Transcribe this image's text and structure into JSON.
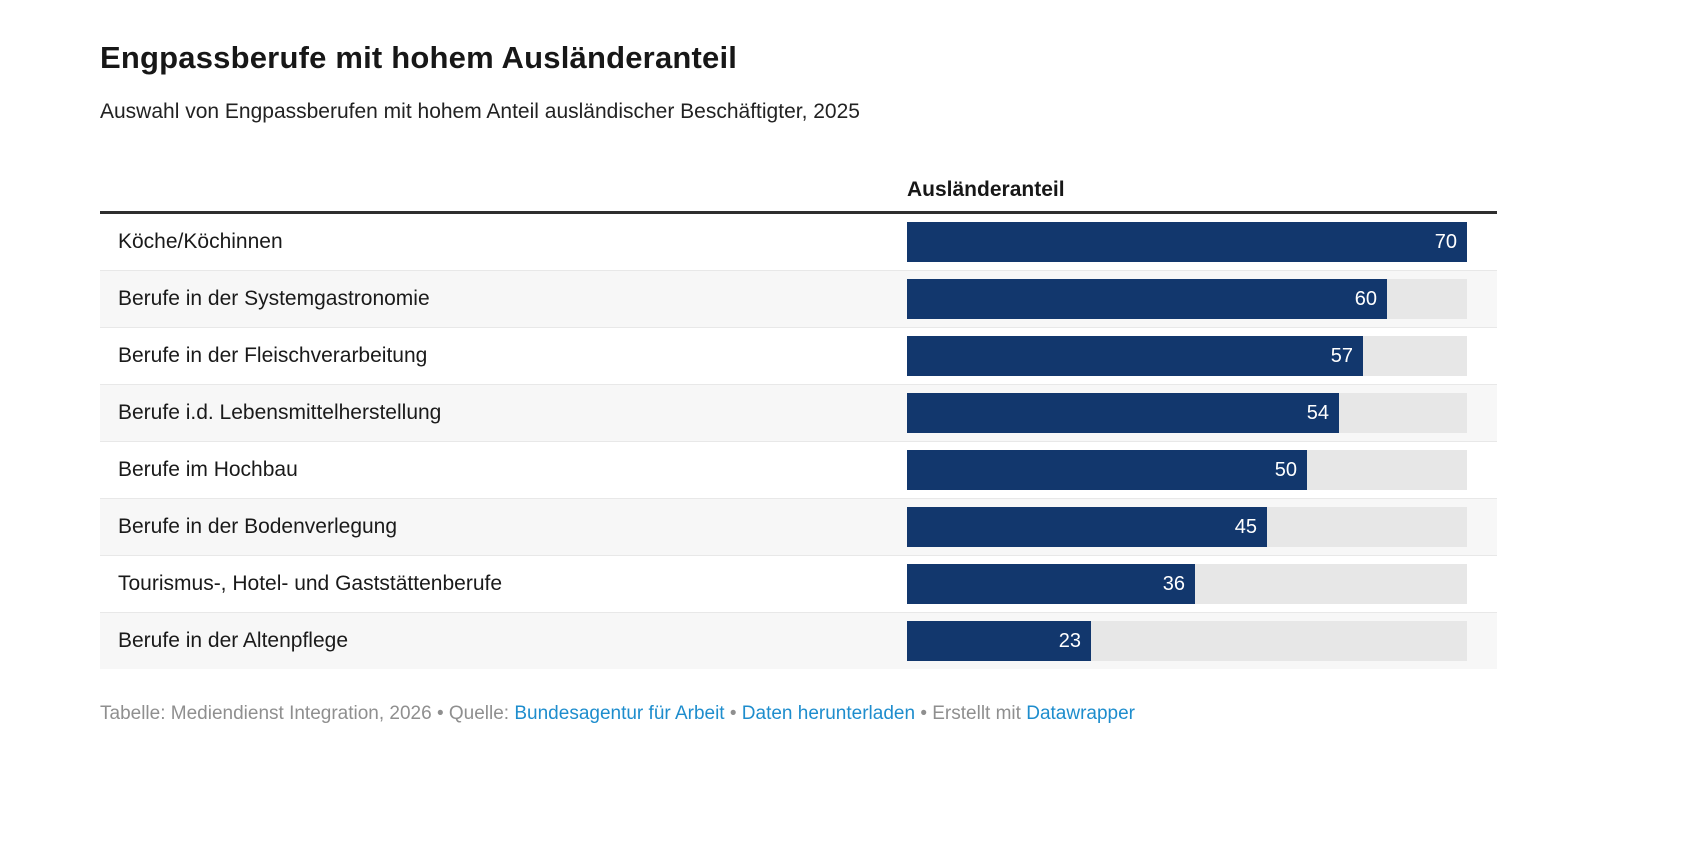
{
  "header": {
    "title": "Engpassberufe mit hohem Ausländeranteil",
    "subtitle": "Auswahl von Engpassberufen mit hohem Anteil ausländischer Beschäftigter, 2025"
  },
  "chart_data": {
    "type": "bar",
    "orientation": "horizontal",
    "title": "Engpassberufe mit hohem Ausländeranteil",
    "subtitle": "Auswahl von Engpassberufen mit hohem Anteil ausländischer Beschäftigter, 2025",
    "column_header": "Ausländeranteil",
    "categories": [
      "Köche/Köchinnen",
      "Berufe in der Systemgastronomie",
      "Berufe in der Fleischverarbeitung",
      "Berufe i.d. Lebensmittelherstellung",
      "Berufe im Hochbau",
      "Berufe in der Bodenverlegung",
      "Tourismus-, Hotel- und Gaststättenberufe",
      "Berufe in der Altenpflege"
    ],
    "values": [
      70,
      60,
      57,
      54,
      50,
      45,
      36,
      23
    ],
    "xlim": [
      0,
      70
    ],
    "grid": false,
    "legend": false,
    "value_labels": "inside-end",
    "colors": {
      "bar": "#12376d",
      "track": "#e7e7e7",
      "row_stripe": "#f7f7f7",
      "value_label": "#ffffff",
      "header_rule": "#2e2e2e"
    }
  },
  "footer": {
    "link_color": "#1e8dcd",
    "segments": [
      {
        "text": "Tabelle: Mediendienst Integration, 2026 • Quelle: ",
        "link": false,
        "name": "footer-attribution-text"
      },
      {
        "text": "Bundesagentur für Arbeit",
        "link": true,
        "name": "footer-link-source"
      },
      {
        "text": " • ",
        "link": false,
        "name": "footer-separator"
      },
      {
        "text": "Daten herunterladen",
        "link": true,
        "name": "footer-link-download"
      },
      {
        "text": " • Erstellt mit ",
        "link": false,
        "name": "footer-created-with-text"
      },
      {
        "text": "Datawrapper",
        "link": true,
        "name": "footer-link-datawrapper"
      }
    ]
  }
}
